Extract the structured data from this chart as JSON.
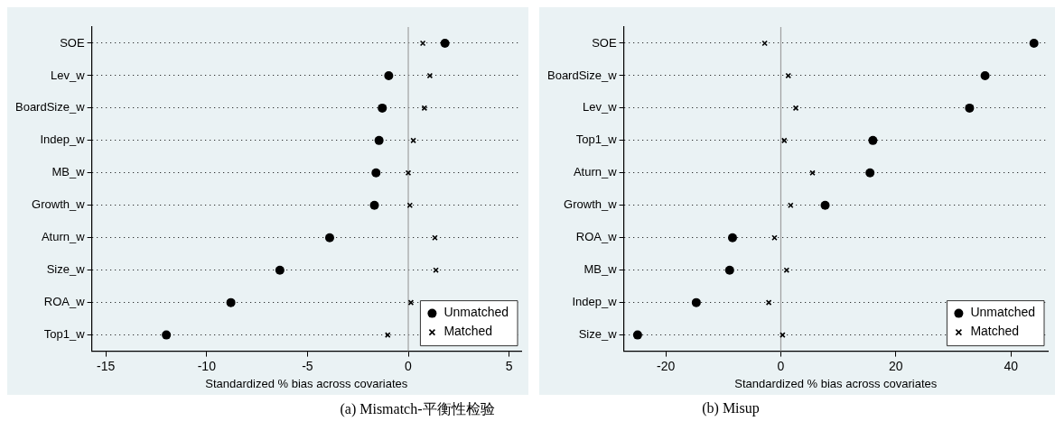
{
  "chart_data": [
    {
      "type": "scatter",
      "categories": [
        "SOE",
        "Lev_w",
        "BoardSize_w",
        "Indep_w",
        "MB_w",
        "Growth_w",
        "Aturn_w",
        "Size_w",
        "ROA_w",
        "Top1_w"
      ],
      "series": [
        {
          "name": "Unmatched",
          "color": "#000000",
          "marker": "circle",
          "values": [
            1.82,
            -0.97,
            -1.29,
            -1.45,
            -1.6,
            -1.68,
            -3.9,
            -6.37,
            -8.8,
            -12.0
          ]
        },
        {
          "name": "Matched",
          "color": "#000000",
          "marker": "cross",
          "values": [
            0.72,
            1.07,
            0.8,
            0.25,
            0,
            0.08,
            1.32,
            1.37,
            0.13,
            -1.02
          ]
        }
      ],
      "xlabel": "Standardized % bias across covariates",
      "xlim": [
        -15.7,
        5.6
      ],
      "xticks": [
        -15,
        -10,
        -5,
        0,
        5
      ],
      "ref_lines": [
        {
          "axis": "x",
          "value": 0,
          "color": "#a0a0a0"
        }
      ],
      "grid": "y",
      "legend": "bottom right",
      "annotations": [
        "(a) Mismatch-平衡性检验"
      ],
      "orientation": "horizontal"
    },
    {
      "type": "scatter",
      "categories": [
        "SOE",
        "BoardSize_w",
        "Lev_w",
        "Top1_w",
        "Aturn_w",
        "Growth_w",
        "ROA_w",
        "MB_w",
        "Indep_w",
        "Size_w"
      ],
      "series": [
        {
          "name": "Unmatched",
          "color": "#000000",
          "marker": "circle",
          "values": [
            44,
            35.5,
            32.8,
            16.0,
            15.5,
            7.7,
            -8.4,
            -8.9,
            -14.7,
            -24.9
          ]
        },
        {
          "name": "Matched",
          "color": "#000000",
          "marker": "cross",
          "values": [
            -2.8,
            1.3,
            2.6,
            0.6,
            5.5,
            1.7,
            -1.1,
            1.0,
            -2.1,
            0.3
          ]
        }
      ],
      "xlabel": "Standardized % bias across covariates",
      "xlim": [
        -27.3,
        46.4
      ],
      "xticks": [
        -20,
        0,
        20,
        40
      ],
      "ref_lines": [
        {
          "axis": "x",
          "value": 0,
          "color": "#a0a0a0"
        }
      ],
      "grid": "y",
      "legend": "bottom right",
      "annotations": [
        "(b) Misup"
      ],
      "orientation": "horizontal"
    }
  ]
}
